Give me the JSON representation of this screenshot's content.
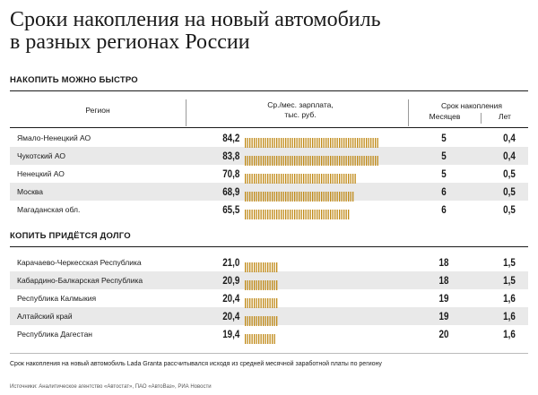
{
  "title_line1": "Сроки накопления на новый автомобиль",
  "title_line2": "в разных регионах России",
  "section_fast": "НАКОПИТЬ МОЖНО БЫСТРО",
  "section_slow": "КОПИТЬ ПРИДЁТСЯ ДОЛГО",
  "headers": {
    "region": "Регион",
    "salary_line1": "Ср./мес. зарплата,",
    "salary_line2": "тыс. руб.",
    "term": "Срок накопления",
    "months": "Месяцев",
    "years": "Лет"
  },
  "fast_rows": [
    {
      "region": "Ямало-Ненецкий АО",
      "salary": "84,2",
      "months": "5",
      "years": "0,4"
    },
    {
      "region": "Чукотский АО",
      "salary": "83,8",
      "months": "5",
      "years": "0,4"
    },
    {
      "region": "Ненецкий АО",
      "salary": "70,8",
      "months": "5",
      "years": "0,5"
    },
    {
      "region": "Москва",
      "salary": "68,9",
      "months": "6",
      "years": "0,5"
    },
    {
      "region": "Магаданская обл.",
      "salary": "65,5",
      "months": "6",
      "years": "0,5"
    }
  ],
  "slow_rows": [
    {
      "region": "Карачаево-Черкесская Республика",
      "salary": "21,0",
      "months": "18",
      "years": "1,5"
    },
    {
      "region": "Кабардино-Балкарская Республика",
      "salary": "20,9",
      "months": "18",
      "years": "1,5"
    },
    {
      "region": "Республика Калмыкия",
      "salary": "20,4",
      "months": "19",
      "years": "1,6"
    },
    {
      "region": "Алтайский край",
      "salary": "20,4",
      "months": "19",
      "years": "1,6"
    },
    {
      "region": "Республика Дагестан",
      "salary": "19,4",
      "months": "20",
      "years": "1,6"
    }
  ],
  "footnote": "Срок накопления на новый автомобиль Lada Granta рассчитывался исходя из средней месячной заработной платы по региону",
  "sources": "Источники: Аналитическое агентство «Автостат», ПАО «АвтоВаз», РИА Новости",
  "colors": {
    "bar": "#c08a18",
    "shade": "#e9e9e9"
  },
  "chart_data": {
    "type": "bar",
    "orientation": "horizontal",
    "categories": [
      "Ямало-Ненецкий АО",
      "Чукотский АО",
      "Ненецкий АО",
      "Москва",
      "Магаданская обл.",
      "Карачаево-Черкесская Республика",
      "Кабардино-Балкарская Республика",
      "Республика Калмыкия",
      "Алтайский край",
      "Республика Дагестан"
    ],
    "values": [
      84.2,
      83.8,
      70.8,
      68.9,
      65.5,
      21.0,
      20.9,
      20.4,
      20.4,
      19.4
    ],
    "xlim": [
      0,
      84.2
    ]
  }
}
